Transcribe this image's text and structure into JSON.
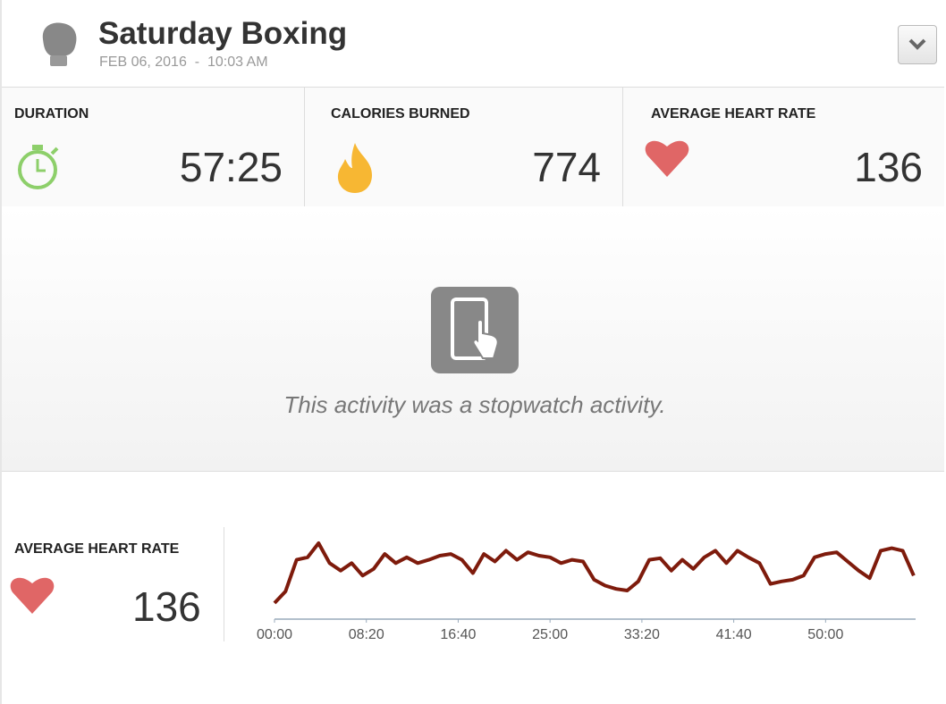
{
  "header": {
    "title": "Saturday Boxing",
    "subtitle": "FEB 06, 2016  -  10:03 AM"
  },
  "stats": [
    {
      "label": "DURATION",
      "value": "57:25"
    },
    {
      "label": "CALORIES BURNED",
      "value": "774"
    },
    {
      "label": "AVERAGE HEART RATE",
      "value": "136"
    }
  ],
  "message": "This activity was a stopwatch activity.",
  "heart_rate": {
    "label": "AVERAGE HEART RATE",
    "value": "136"
  },
  "chart_data": {
    "type": "line",
    "color": "#7e1b0c",
    "x": [
      0,
      60,
      120,
      180,
      240,
      300,
      360,
      420,
      480,
      540,
      600,
      660,
      720,
      780,
      840,
      900,
      960,
      1020,
      1080,
      1140,
      1200,
      1260,
      1320,
      1380,
      1440,
      1500,
      1560,
      1620,
      1680,
      1740,
      1800,
      1860,
      1920,
      1980,
      2040,
      2100,
      2160,
      2220,
      2280,
      2340,
      2400,
      2460,
      2520,
      2580,
      2640,
      2700,
      2760,
      2820,
      2880,
      2940,
      3000,
      3060,
      3120,
      3180,
      3240,
      3300,
      3360,
      3420,
      3480
    ],
    "values": [
      86,
      100,
      138,
      141,
      158,
      134,
      125,
      134,
      119,
      127,
      145,
      134,
      141,
      134,
      138,
      143,
      145,
      138,
      122,
      145,
      136,
      149,
      138,
      147,
      143,
      141,
      134,
      138,
      136,
      114,
      107,
      103,
      101,
      112,
      138,
      140,
      125,
      138,
      127,
      141,
      149,
      134,
      149,
      141,
      134,
      109,
      112,
      114,
      119,
      141,
      145,
      147,
      136,
      125,
      116,
      149,
      152,
      149,
      119
    ],
    "xlim": [
      0,
      3490
    ],
    "xticks": [
      {
        "value": 0,
        "label": "00:00"
      },
      {
        "value": 500,
        "label": "08:20"
      },
      {
        "value": 1000,
        "label": "16:40"
      },
      {
        "value": 1500,
        "label": "25:00"
      },
      {
        "value": 2000,
        "label": "33:20"
      },
      {
        "value": 2500,
        "label": "41:40"
      },
      {
        "value": 3000,
        "label": "50:00"
      }
    ]
  }
}
